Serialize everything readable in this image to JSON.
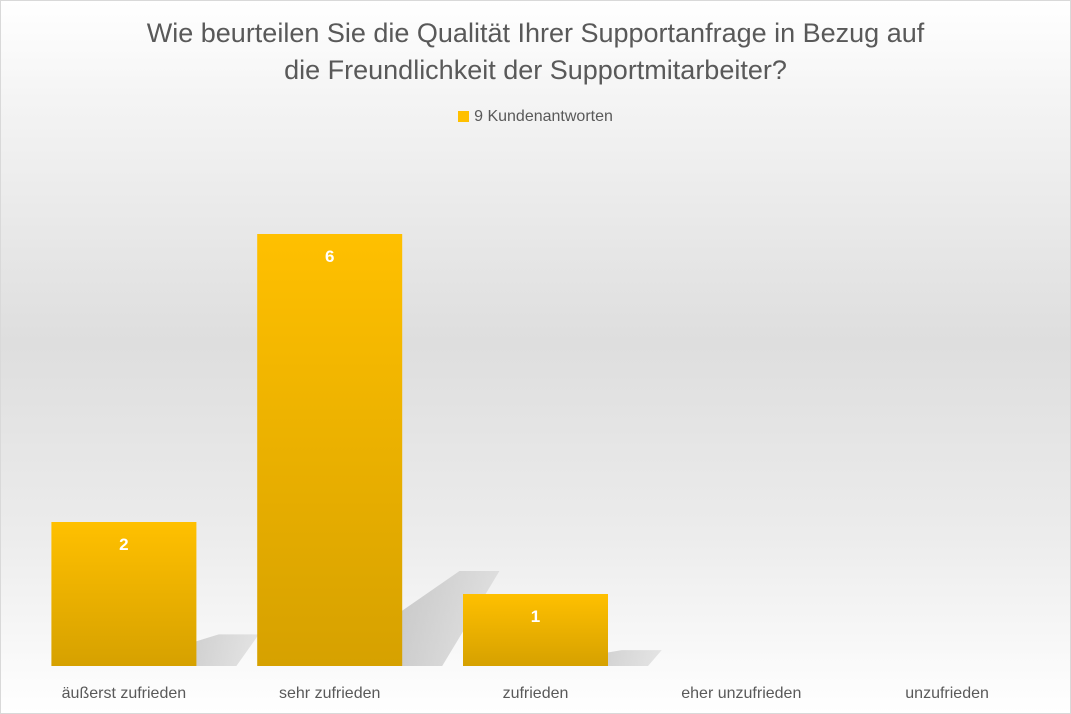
{
  "chart_data": {
    "type": "bar",
    "title_lines": [
      "Wie beurteilen Sie die Qualität Ihrer Supportanfrage in Bezug auf",
      "die Freundlichkeit der Supportmitarbeiter?"
    ],
    "categories": [
      "äußerst zufrieden",
      "sehr zufrieden",
      "zufrieden",
      "eher unzufrieden",
      "unzufrieden"
    ],
    "series": [
      {
        "name": "9 Kundenantworten",
        "values": [
          2,
          6,
          1,
          0,
          0
        ]
      }
    ],
    "data_labels": [
      "2",
      "6",
      "1",
      "",
      ""
    ],
    "ylim": [
      0,
      6.75
    ],
    "grid": false,
    "legend_position": "top",
    "colors": {
      "bar_top": "#ffc000",
      "bar_bottom": "#d6a100",
      "shadow": "#a6a6a6",
      "text": "#595959",
      "data_label": "#ffffff"
    }
  }
}
